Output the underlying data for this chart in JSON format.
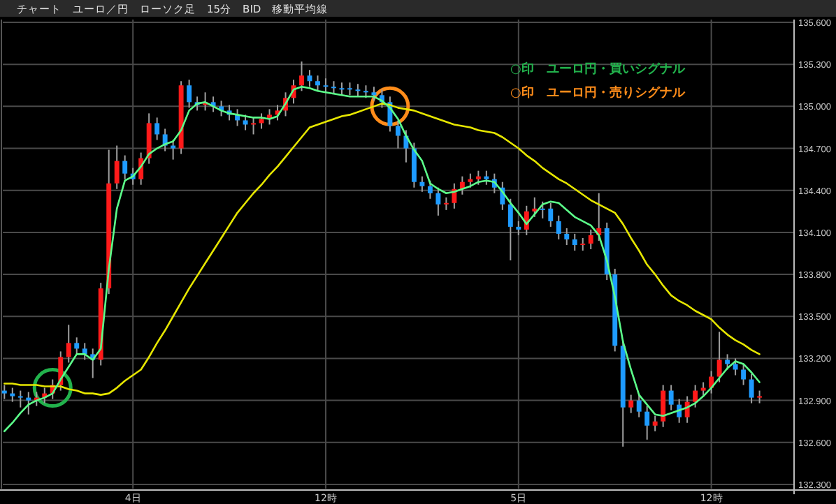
{
  "chart_data": {
    "type": "candlestick",
    "title": "チャート　ユーロ／円　ローソク足　15分　BID　移動平均線",
    "ylim": [
      132.27,
      135.62
    ],
    "yticks": [
      {
        "value": 132.3,
        "label": "132.300"
      },
      {
        "value": 132.6,
        "label": "132.600"
      },
      {
        "value": 132.9,
        "label": "132.900"
      },
      {
        "value": 133.2,
        "label": "133.200"
      },
      {
        "value": 133.5,
        "label": "133.500"
      },
      {
        "value": 133.8,
        "label": "133.800"
      },
      {
        "value": 134.1,
        "label": "134.100"
      },
      {
        "value": 134.4,
        "label": "134.400"
      },
      {
        "value": 134.7,
        "label": "134.700"
      },
      {
        "value": 135.0,
        "label": "135.000"
      },
      {
        "value": 135.3,
        "label": "135.300"
      },
      {
        "value": 135.6,
        "label": "135.600"
      }
    ],
    "grid": true,
    "legend": "top right",
    "categories": [
      null,
      null,
      null,
      null,
      null,
      null,
      null,
      null,
      null,
      null,
      null,
      null,
      null,
      null,
      null,
      null,
      "4日",
      null,
      null,
      null,
      null,
      null,
      null,
      null,
      null,
      null,
      null,
      null,
      null,
      null,
      null,
      null,
      null,
      null,
      null,
      null,
      null,
      null,
      null,
      null,
      "12時",
      null,
      null,
      null,
      null,
      null,
      null,
      null,
      null,
      null,
      null,
      null,
      null,
      null,
      null,
      null,
      null,
      null,
      null,
      null,
      null,
      null,
      null,
      null,
      "5日",
      null,
      null,
      null,
      null,
      null,
      null,
      null,
      null,
      null,
      null,
      null,
      null,
      null,
      null,
      null,
      null,
      null,
      null,
      null,
      null,
      null,
      null,
      null,
      "12時",
      null,
      null,
      null,
      null,
      null,
      null
    ],
    "ohlc": [
      [
        132.97,
        133.01,
        132.91,
        132.95
      ],
      [
        132.95,
        132.99,
        132.89,
        132.93
      ],
      [
        132.93,
        132.97,
        132.85,
        132.92
      ],
      [
        132.92,
        132.96,
        132.8,
        132.9
      ],
      [
        132.9,
        132.96,
        132.86,
        132.92
      ],
      [
        132.92,
        132.99,
        132.88,
        132.95
      ],
      [
        132.95,
        133.05,
        132.91,
        133.01
      ],
      [
        133.01,
        133.25,
        132.97,
        133.21
      ],
      [
        133.21,
        133.44,
        133.17,
        133.31
      ],
      [
        133.31,
        133.35,
        133.23,
        133.27
      ],
      [
        133.27,
        133.31,
        133.19,
        133.23
      ],
      [
        133.23,
        133.27,
        133.06,
        133.19
      ],
      [
        133.19,
        133.74,
        133.15,
        133.7
      ],
      [
        133.7,
        134.69,
        133.66,
        134.45
      ],
      [
        134.45,
        134.72,
        134.41,
        134.61
      ],
      [
        134.61,
        134.65,
        134.48,
        134.52
      ],
      [
        134.52,
        134.56,
        134.44,
        134.48
      ],
      [
        134.48,
        134.67,
        134.44,
        134.63
      ],
      [
        134.63,
        134.95,
        134.59,
        134.88
      ],
      [
        134.88,
        134.92,
        134.76,
        134.8
      ],
      [
        134.8,
        134.84,
        134.68,
        134.72
      ],
      [
        134.72,
        134.76,
        134.62,
        134.7
      ],
      [
        134.7,
        135.18,
        134.66,
        135.15
      ],
      [
        135.15,
        135.19,
        134.99,
        135.03
      ],
      [
        135.03,
        135.07,
        134.97,
        135.01
      ],
      [
        135.01,
        135.1,
        134.97,
        135.03
      ],
      [
        135.03,
        135.07,
        134.96,
        135.0
      ],
      [
        135.0,
        135.04,
        134.93,
        134.97
      ],
      [
        134.97,
        135.01,
        134.9,
        134.94
      ],
      [
        134.94,
        134.98,
        134.86,
        134.9
      ],
      [
        134.9,
        134.94,
        134.83,
        134.87
      ],
      [
        134.87,
        134.92,
        134.8,
        134.88
      ],
      [
        134.88,
        134.95,
        134.84,
        134.91
      ],
      [
        134.91,
        134.98,
        134.87,
        134.94
      ],
      [
        134.94,
        135.01,
        134.9,
        134.97
      ],
      [
        134.97,
        135.1,
        134.93,
        135.06
      ],
      [
        135.06,
        135.19,
        135.02,
        135.15
      ],
      [
        135.15,
        135.32,
        135.11,
        135.22
      ],
      [
        135.22,
        135.26,
        135.14,
        135.18
      ],
      [
        135.18,
        135.22,
        135.11,
        135.15
      ],
      [
        135.15,
        135.2,
        135.1,
        135.14
      ],
      [
        135.14,
        135.18,
        135.09,
        135.13
      ],
      [
        135.13,
        135.17,
        135.08,
        135.13
      ],
      [
        135.13,
        135.17,
        135.08,
        135.12
      ],
      [
        135.12,
        135.16,
        135.07,
        135.11
      ],
      [
        135.11,
        135.15,
        135.06,
        135.1
      ],
      [
        135.1,
        135.14,
        135.04,
        135.08
      ],
      [
        135.08,
        135.12,
        134.99,
        135.03
      ],
      [
        135.03,
        135.07,
        134.82,
        134.86
      ],
      [
        134.86,
        134.9,
        134.7,
        134.79
      ],
      [
        134.79,
        134.83,
        134.6,
        134.7
      ],
      [
        134.7,
        134.74,
        134.42,
        134.46
      ],
      [
        134.46,
        134.5,
        134.39,
        134.43
      ],
      [
        134.43,
        134.47,
        134.34,
        134.38
      ],
      [
        134.38,
        134.42,
        134.22,
        134.3
      ],
      [
        134.3,
        134.35,
        134.26,
        134.31
      ],
      [
        134.31,
        134.45,
        134.27,
        134.41
      ],
      [
        134.41,
        134.5,
        134.37,
        134.46
      ],
      [
        134.46,
        134.52,
        134.42,
        134.48
      ],
      [
        134.48,
        134.54,
        134.44,
        134.5
      ],
      [
        134.5,
        134.54,
        134.44,
        134.48
      ],
      [
        134.48,
        134.52,
        134.38,
        134.42
      ],
      [
        134.42,
        134.46,
        134.26,
        134.3
      ],
      [
        134.3,
        134.34,
        133.9,
        134.14
      ],
      [
        134.14,
        134.18,
        134.08,
        134.12
      ],
      [
        134.12,
        134.29,
        134.08,
        134.25
      ],
      [
        134.25,
        134.35,
        134.21,
        134.27
      ],
      [
        134.27,
        134.32,
        134.2,
        134.27
      ],
      [
        134.27,
        134.31,
        134.14,
        134.18
      ],
      [
        134.18,
        134.22,
        134.05,
        134.09
      ],
      [
        134.09,
        134.13,
        134.01,
        134.05
      ],
      [
        134.05,
        134.09,
        133.97,
        134.01
      ],
      [
        134.01,
        134.06,
        133.97,
        134.02
      ],
      [
        134.02,
        134.12,
        133.98,
        134.08
      ],
      [
        134.08,
        134.38,
        134.04,
        134.13
      ],
      [
        134.13,
        134.17,
        133.76,
        133.8
      ],
      [
        133.8,
        133.84,
        133.25,
        133.29
      ],
      [
        133.29,
        133.33,
        132.57,
        132.85
      ],
      [
        132.85,
        132.94,
        132.81,
        132.9
      ],
      [
        132.9,
        132.94,
        132.78,
        132.82
      ],
      [
        132.82,
        132.86,
        132.62,
        132.72
      ],
      [
        132.72,
        132.79,
        132.68,
        132.75
      ],
      [
        132.75,
        133.01,
        132.71,
        132.97
      ],
      [
        132.97,
        133.01,
        132.83,
        132.87
      ],
      [
        132.87,
        132.91,
        132.74,
        132.78
      ],
      [
        132.78,
        132.93,
        132.74,
        132.89
      ],
      [
        132.89,
        133.01,
        132.85,
        132.97
      ],
      [
        132.97,
        133.03,
        132.93,
        132.99
      ],
      [
        132.99,
        133.11,
        132.95,
        133.07
      ],
      [
        133.07,
        133.39,
        133.03,
        133.19
      ],
      [
        133.19,
        133.23,
        133.12,
        133.16
      ],
      [
        133.16,
        133.2,
        133.08,
        133.12
      ],
      [
        133.12,
        133.16,
        133.01,
        133.05
      ],
      [
        133.05,
        133.09,
        132.88,
        132.92
      ],
      [
        132.92,
        132.97,
        132.88,
        132.93
      ]
    ],
    "colors": [
      "#1e9bff",
      "#1e9bff",
      "#1e9bff",
      "#1e9bff",
      "#ff1a1a",
      "#ff1a1a",
      "#ff1a1a",
      "#ff1a1a",
      "#ff1a1a",
      "#1e9bff",
      "#1e9bff",
      "#1e9bff",
      "#ff1a1a",
      "#ff1a1a",
      "#ff1a1a",
      "#1e9bff",
      "#1e9bff",
      "#ff1a1a",
      "#ff1a1a",
      "#1e9bff",
      "#1e9bff",
      "#1e9bff",
      "#ff1a1a",
      "#1e9bff",
      "#1e9bff",
      "#ff1a1a",
      "#1e9bff",
      "#1e9bff",
      "#1e9bff",
      "#1e9bff",
      "#1e9bff",
      "#ff1a1a",
      "#ff1a1a",
      "#ff1a1a",
      "#ff1a1a",
      "#ff1a1a",
      "#ff1a1a",
      "#ff1a1a",
      "#1e9bff",
      "#1e9bff",
      "#1e9bff",
      "#1e9bff",
      "#1e9bff",
      "#1e9bff",
      "#1e9bff",
      "#1e9bff",
      "#1e9bff",
      "#1e9bff",
      "#1e9bff",
      "#1e9bff",
      "#1e9bff",
      "#1e9bff",
      "#1e9bff",
      "#1e9bff",
      "#1e9bff",
      "#ff1a1a",
      "#ff1a1a",
      "#ff1a1a",
      "#ff1a1a",
      "#ff1a1a",
      "#1e9bff",
      "#1e9bff",
      "#1e9bff",
      "#1e9bff",
      "#1e9bff",
      "#ff1a1a",
      "#ff1a1a",
      "#1e9bff",
      "#1e9bff",
      "#1e9bff",
      "#1e9bff",
      "#1e9bff",
      "#ff1a1a",
      "#ff1a1a",
      "#ff1a1a",
      "#1e9bff",
      "#1e9bff",
      "#1e9bff",
      "#ff1a1a",
      "#1e9bff",
      "#1e9bff",
      "#ff1a1a",
      "#ff1a1a",
      "#1e9bff",
      "#1e9bff",
      "#ff1a1a",
      "#ff1a1a",
      "#ff1a1a",
      "#ff1a1a",
      "#ff1a1a",
      "#1e9bff",
      "#1e9bff",
      "#1e9bff",
      "#1e9bff",
      "#ff1a1a"
    ],
    "series": [
      {
        "type": "line",
        "color": "#e6e600",
        "values": [
          133.02,
          133.02,
          133.01,
          133.01,
          133.01,
          133.0,
          133.0,
          133.0,
          132.98,
          132.97,
          132.95,
          132.95,
          132.94,
          132.95,
          132.99,
          133.04,
          133.08,
          133.12,
          133.21,
          133.31,
          133.4,
          133.5,
          133.6,
          133.7,
          133.79,
          133.88,
          133.97,
          134.06,
          134.15,
          134.24,
          134.31,
          134.38,
          134.44,
          134.51,
          134.57,
          134.64,
          134.71,
          134.78,
          134.85,
          134.87,
          134.89,
          134.91,
          134.93,
          134.94,
          134.96,
          134.98,
          135.0,
          135.02,
          135.01,
          134.99,
          134.98,
          134.97,
          134.95,
          134.93,
          134.91,
          134.89,
          134.87,
          134.86,
          134.85,
          134.83,
          134.82,
          134.81,
          134.78,
          134.74,
          134.7,
          134.65,
          134.61,
          134.56,
          134.52,
          134.48,
          134.45,
          134.41,
          134.37,
          134.33,
          134.3,
          134.27,
          134.24,
          134.16,
          134.06,
          133.97,
          133.87,
          133.8,
          133.72,
          133.65,
          133.61,
          133.58,
          133.54,
          133.51,
          133.48,
          133.42,
          133.37,
          133.33,
          133.3,
          133.26,
          133.23
        ]
      },
      {
        "type": "line",
        "color": "#5cff8a",
        "values": [
          132.68,
          132.74,
          132.81,
          132.87,
          132.9,
          132.92,
          132.95,
          133.05,
          133.14,
          133.23,
          133.23,
          133.19,
          133.27,
          133.84,
          134.27,
          134.47,
          134.5,
          134.57,
          134.66,
          134.7,
          134.73,
          134.75,
          134.83,
          134.97,
          135.02,
          135.03,
          135.0,
          134.97,
          134.95,
          134.94,
          134.93,
          134.92,
          134.92,
          134.91,
          134.93,
          135.02,
          135.12,
          135.14,
          135.13,
          135.11,
          135.1,
          135.09,
          135.08,
          135.07,
          135.07,
          135.07,
          135.07,
          135.04,
          134.99,
          134.91,
          134.79,
          134.69,
          134.61,
          134.45,
          134.41,
          134.38,
          134.39,
          134.41,
          134.43,
          134.46,
          134.47,
          134.46,
          134.39,
          134.31,
          134.24,
          134.16,
          134.23,
          134.3,
          134.32,
          134.31,
          134.26,
          134.21,
          134.18,
          134.15,
          134.08,
          133.9,
          133.64,
          133.32,
          133.12,
          132.94,
          132.87,
          132.8,
          132.79,
          132.81,
          132.83,
          132.85,
          132.88,
          132.93,
          132.99,
          133.06,
          133.13,
          133.18,
          133.16,
          133.1,
          133.03
        ]
      },
      {
        "type": "scatter",
        "name": "○印　ユーロ円・買いシグナル",
        "color": "#22b24c",
        "marker": "circle",
        "values": [
          null,
          null,
          null,
          null,
          null,
          null,
          132.99,
          null,
          null,
          null,
          null,
          null,
          null,
          null,
          null,
          null,
          null,
          null,
          null,
          null,
          null,
          null,
          null,
          null,
          null,
          null,
          null,
          null,
          null,
          null,
          null,
          null,
          null,
          null,
          null,
          null,
          null,
          null,
          null,
          null,
          null,
          null,
          null,
          null,
          null,
          null,
          null,
          null,
          null,
          null,
          null,
          null,
          null,
          null,
          null,
          null,
          null,
          null,
          null,
          null,
          null,
          null,
          null,
          null,
          null,
          null,
          null,
          null,
          null,
          null,
          null,
          null,
          null,
          null,
          null,
          null,
          null,
          null,
          null,
          null,
          null,
          null,
          null,
          null,
          null,
          null,
          null,
          null,
          null,
          null,
          null,
          null,
          null,
          null,
          null
        ]
      },
      {
        "type": "scatter",
        "name": "○印　ユーロ円・売りシグナル",
        "color": "#ff8c1a",
        "marker": "circle",
        "values": [
          null,
          null,
          null,
          null,
          null,
          null,
          null,
          null,
          null,
          null,
          null,
          null,
          null,
          null,
          null,
          null,
          null,
          null,
          null,
          null,
          null,
          null,
          null,
          null,
          null,
          null,
          null,
          null,
          null,
          null,
          null,
          null,
          null,
          null,
          null,
          null,
          null,
          null,
          null,
          null,
          null,
          null,
          null,
          null,
          null,
          null,
          null,
          null,
          135.0,
          null,
          null,
          null,
          null,
          null,
          null,
          null,
          null,
          null,
          null,
          null,
          null,
          null,
          null,
          null,
          null,
          null,
          null,
          null,
          null,
          null,
          null,
          null,
          null,
          null,
          null,
          null,
          null,
          null,
          null,
          null,
          null,
          null,
          null,
          null,
          null,
          null,
          null,
          null,
          null,
          null,
          null,
          null,
          null,
          null,
          null
        ]
      }
    ]
  }
}
